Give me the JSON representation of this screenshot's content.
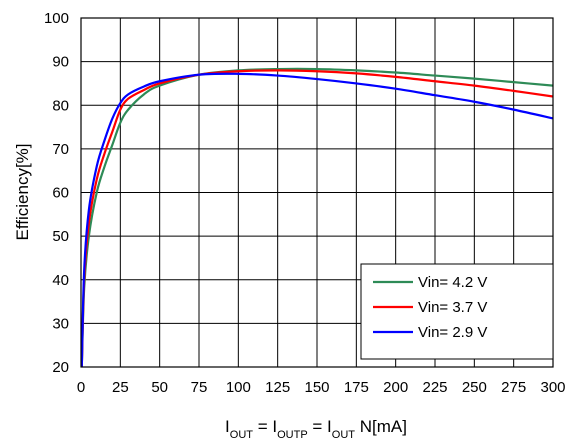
{
  "chart_data": {
    "type": "line",
    "title": "",
    "ylabel": "Efficiency[%]",
    "xlabel_parts": [
      {
        "text": "I",
        "sub": "OUT"
      },
      {
        "text": "  = I",
        "sub": "OUTP"
      },
      {
        "text": " = I",
        "sub": "OUT"
      },
      {
        "text": " N[mA]",
        "sub": ""
      }
    ],
    "xlim": [
      0,
      300
    ],
    "ylim": [
      20,
      100
    ],
    "x_ticks": [
      0,
      25,
      50,
      75,
      100,
      125,
      150,
      175,
      200,
      225,
      250,
      275,
      300
    ],
    "y_ticks": [
      20,
      30,
      40,
      50,
      60,
      70,
      80,
      90,
      100
    ],
    "grid": true,
    "legend_position": "bottom-right",
    "series": [
      {
        "name": "Vin= 4.2 V",
        "color": "#2e8b57",
        "x": [
          0.5,
          2,
          5,
          10,
          15,
          20,
          25,
          30,
          40,
          50,
          75,
          100,
          125,
          150,
          175,
          200,
          225,
          250,
          275,
          300
        ],
        "y": [
          20,
          38,
          50,
          60,
          66,
          71,
          76,
          79,
          82.5,
          84.5,
          87,
          88,
          88.3,
          88.3,
          88,
          87.5,
          86.8,
          86.1,
          85.3,
          84.5
        ]
      },
      {
        "name": "Vin= 3.7 V",
        "color": "#ff0000",
        "x": [
          0.5,
          2,
          5,
          10,
          15,
          20,
          25,
          30,
          40,
          50,
          75,
          100,
          125,
          150,
          175,
          200,
          225,
          250,
          275,
          300
        ],
        "y": [
          20,
          40,
          53,
          63,
          69,
          74,
          79,
          81.5,
          83.5,
          85,
          87,
          87.8,
          88,
          87.8,
          87.3,
          86.5,
          85.5,
          84.5,
          83.3,
          82
        ]
      },
      {
        "name": "Vin= 2.9 V",
        "color": "#0000ff",
        "x": [
          0.5,
          2,
          5,
          10,
          15,
          20,
          25,
          30,
          40,
          50,
          75,
          100,
          125,
          150,
          175,
          200,
          225,
          250,
          275,
          300
        ],
        "y": [
          20,
          42,
          56,
          66,
          72,
          77,
          80.5,
          82.5,
          84.3,
          85.5,
          87,
          87.2,
          86.8,
          86,
          85,
          83.8,
          82.3,
          80.8,
          79,
          77
        ]
      }
    ]
  }
}
